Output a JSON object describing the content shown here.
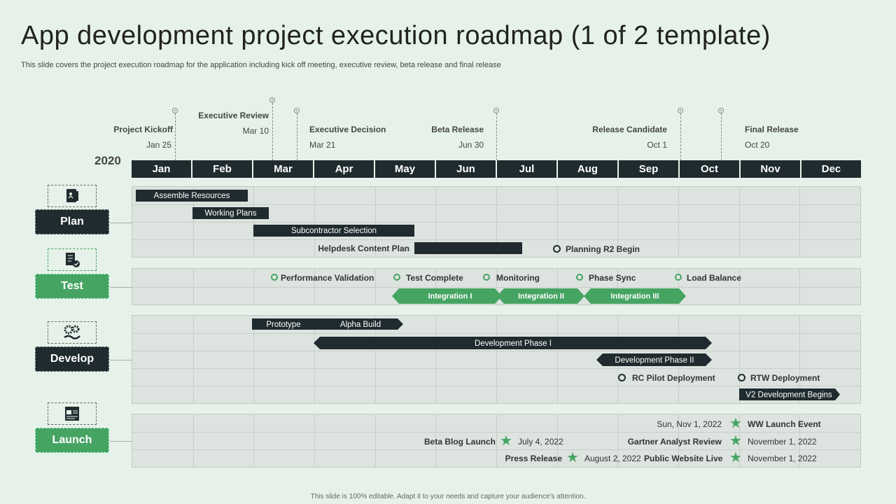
{
  "title": "App development project execution roadmap (1 of 2 template)",
  "subtitle": "This slide covers the project execution roadmap for the application including kick off meeting, executive review, beta release and final release",
  "year": "2020",
  "months": [
    "Jan",
    "Feb",
    "Mar",
    "Apr",
    "May",
    "Jun",
    "Jul",
    "Aug",
    "Sep",
    "Oct",
    "Nov",
    "Dec"
  ],
  "milestones": [
    {
      "label": "Project Kickoff",
      "date": "Jan 25"
    },
    {
      "label": "Executive Review",
      "date": "Mar 10"
    },
    {
      "label": "Executive Decision",
      "date": "Mar 21"
    },
    {
      "label": "Beta Release",
      "date": "Jun 30"
    },
    {
      "label": "Release Candidate",
      "date": "Oct 1"
    },
    {
      "label": "Final Release",
      "date": "Oct 20"
    }
  ],
  "categories": {
    "plan": "Plan",
    "test": "Test",
    "develop": "Develop",
    "launch": "Launch"
  },
  "plan": {
    "assemble": "Assemble Resources",
    "working": "Working Plans",
    "subcontractor": "Subcontractor Selection",
    "helpdesk": "Helpdesk Content Plan",
    "r2": "Planning R2 Begin"
  },
  "test": {
    "perf": "Performance Validation",
    "complete": "Test Complete",
    "monitoring": "Monitoring",
    "phase_sync": "Phase Sync",
    "load": "Load Balance",
    "int1": "Integration I",
    "int2": "Integration II",
    "int3": "Integration III"
  },
  "develop": {
    "prototype": "Prototype",
    "alpha": "Alpha Build",
    "phase1": "Development Phase I",
    "phase2": "Development Phase II",
    "rc_pilot": "RC Pilot Deployment",
    "rtw": "RTW Deployment",
    "v2": "V2 Development Begins"
  },
  "launch": {
    "ww_date": "Sun, Nov 1, 2022",
    "ww_event": "WW Launch Event",
    "beta_blog": "Beta Blog Launch",
    "beta_blog_date": "July 4, 2022",
    "gartner": "Gartner Analyst Review",
    "gartner_date": "November 1, 2022",
    "press": "Press Release",
    "press_date": "August 2, 2022",
    "public_site": "Public Website Live",
    "public_date": "November 1, 2022"
  },
  "colors": {
    "dark": "#1f2b2e",
    "green": "#46a463",
    "background": "#e6f2e9"
  },
  "icons": [
    "document-icon",
    "checklist-icon",
    "gears-icon",
    "browser-layout-icon",
    "star-icon"
  ],
  "footer": "This slide is 100% editable. Adapt it to your needs and capture your audience's attention."
}
